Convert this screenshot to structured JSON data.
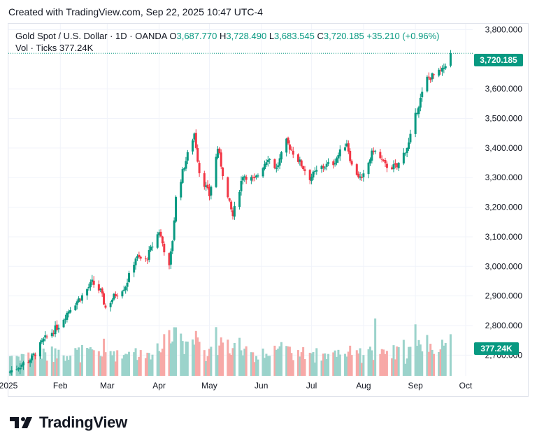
{
  "header": {
    "created_text": "Created with TradingView.com, Sep 22, 2025 10:47 UTC-4"
  },
  "legend": {
    "symbol": "Gold Spot / U.S. Dollar · 1D · OANDA",
    "o_label": "O",
    "o_value": "3,687.770",
    "h_label": "H",
    "h_value": "3,728.490",
    "l_label": "L",
    "l_value": "3,683.545",
    "c_label": "C",
    "c_value": "3,720.185",
    "change": "+35.210 (+0.96%)",
    "vol_label": "Vol · Ticks",
    "vol_value": "377.24K"
  },
  "price_tag": "3,720.185",
  "vol_tag": "377.24K",
  "brand": {
    "name": "TradingView"
  },
  "colors": {
    "up": "#089981",
    "down": "#f23645",
    "vol_up": "#9bd3cb",
    "vol_down": "#f7a9a7",
    "grid": "#f0f3fa",
    "axis_text": "#131722"
  },
  "chart_data": {
    "type": "candlestick",
    "y_ticks": [
      "3,800.000",
      "3,600.000",
      "3,500.000",
      "3,400.000",
      "3,300.000",
      "3,200.000",
      "3,100.000",
      "3,000.000",
      "2,900.000",
      "2,800.000",
      "2,700.000"
    ],
    "x_ticks": [
      "2025",
      "Feb",
      "Mar",
      "Apr",
      "May",
      "Jun",
      "Jul",
      "Aug",
      "Sep",
      "Oct"
    ],
    "ylim": [
      2630,
      3820
    ],
    "last_close": 3720.185,
    "anchors": [
      [
        "2025-01-02",
        2645
      ],
      [
        "2025-01-08",
        2665
      ],
      [
        "2025-01-15",
        2690
      ],
      [
        "2025-01-22",
        2750
      ],
      [
        "2025-01-31",
        2800
      ],
      [
        "2025-02-07",
        2860
      ],
      [
        "2025-02-14",
        2900
      ],
      [
        "2025-02-20",
        2945
      ],
      [
        "2025-02-25",
        2915
      ],
      [
        "2025-02-28",
        2860
      ],
      [
        "2025-03-06",
        2905
      ],
      [
        "2025-03-12",
        2935
      ],
      [
        "2025-03-18",
        3030
      ],
      [
        "2025-03-24",
        3020
      ],
      [
        "2025-04-01",
        3120
      ],
      [
        "2025-04-07",
        2995
      ],
      [
        "2025-04-09",
        3090
      ],
      [
        "2025-04-11",
        3230
      ],
      [
        "2025-04-16",
        3340
      ],
      [
        "2025-04-22",
        3450
      ],
      [
        "2025-04-25",
        3320
      ],
      [
        "2025-05-01",
        3240
      ],
      [
        "2025-05-06",
        3400
      ],
      [
        "2025-05-12",
        3230
      ],
      [
        "2025-05-15",
        3170
      ],
      [
        "2025-05-21",
        3310
      ],
      [
        "2025-05-28",
        3290
      ],
      [
        "2025-06-05",
        3370
      ],
      [
        "2025-06-10",
        3330
      ],
      [
        "2025-06-16",
        3420
      ],
      [
        "2025-06-23",
        3360
      ],
      [
        "2025-06-30",
        3300
      ],
      [
        "2025-07-07",
        3335
      ],
      [
        "2025-07-14",
        3350
      ],
      [
        "2025-07-22",
        3420
      ],
      [
        "2025-07-25",
        3340
      ],
      [
        "2025-07-31",
        3290
      ],
      [
        "2025-08-07",
        3395
      ],
      [
        "2025-08-14",
        3340
      ],
      [
        "2025-08-21",
        3335
      ],
      [
        "2025-08-28",
        3415
      ],
      [
        "2025-09-02",
        3530
      ],
      [
        "2025-09-08",
        3635
      ],
      [
        "2025-09-12",
        3645
      ],
      [
        "2025-09-17",
        3660
      ],
      [
        "2025-09-19",
        3685
      ],
      [
        "2025-09-22",
        3720
      ]
    ],
    "volume_range": [
      2640,
      2840
    ]
  }
}
